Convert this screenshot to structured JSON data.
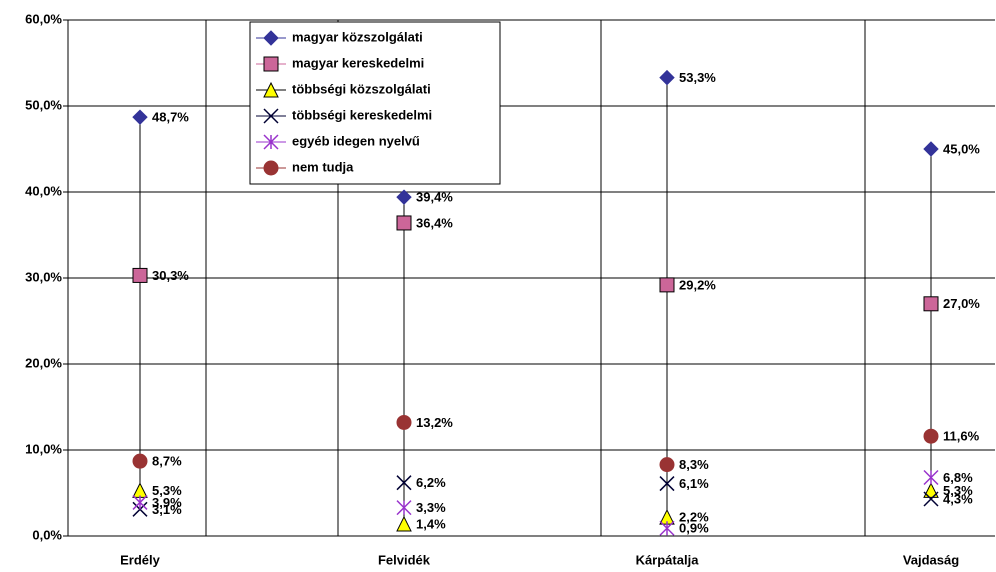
{
  "chart_data": {
    "type": "marker-line",
    "categories": [
      "Erdély",
      "Felvidék",
      "Kárpátalja",
      "Vajdaság"
    ],
    "series": [
      {
        "name": "magyar közszolgálati",
        "color": "#333399",
        "marker": "diamond",
        "values": [
          48.7,
          39.4,
          53.3,
          45.0
        ],
        "value_labels": [
          "48,7%",
          "39,4%",
          "53,3%",
          "45,0%"
        ]
      },
      {
        "name": "magyar kereskedelmi",
        "color": "#cc6699",
        "marker": "square",
        "values": [
          30.3,
          36.4,
          29.2,
          27.0
        ],
        "value_labels": [
          "30,3%",
          "36,4%",
          "29,2%",
          "27,0%"
        ]
      },
      {
        "name": "többségi közszolgálati",
        "color": "#ffff00",
        "marker": "triangle",
        "values": [
          5.3,
          1.4,
          2.2,
          5.3
        ],
        "value_labels": [
          "5,3%",
          "1,4%",
          "2,2%",
          "5,3%"
        ]
      },
      {
        "name": "többségi kereskedelmi",
        "color": "#000033",
        "marker": "x",
        "values": [
          3.1,
          6.2,
          6.1,
          4.3
        ],
        "value_labels": [
          "3,1%",
          "6,2%",
          "6,1%",
          "4,3%"
        ]
      },
      {
        "name": "egyéb idegen nyelvű",
        "color": "#9933cc",
        "marker": "star",
        "values": [
          3.9,
          3.3,
          0.9,
          6.8
        ],
        "value_labels": [
          "3,9%",
          "3,3%",
          "0,9%",
          "6,8%"
        ]
      },
      {
        "name": "nem tudja",
        "color": "#993333",
        "marker": "circle",
        "values": [
          8.7,
          13.2,
          8.3,
          11.6
        ],
        "value_labels": [
          "8,7%",
          "13,2%",
          "8,3%",
          "11,6%"
        ]
      }
    ],
    "ylim": [
      0,
      60
    ],
    "yticks": [
      {
        "value": 0,
        "label": "0,0%"
      },
      {
        "value": 10,
        "label": "10,0%"
      },
      {
        "value": 20,
        "label": "20,0%"
      },
      {
        "value": 30,
        "label": "30,0%"
      },
      {
        "value": 40,
        "label": "40,0%"
      },
      {
        "value": 50,
        "label": "50,0%"
      },
      {
        "value": 60,
        "label": "60,0%"
      }
    ],
    "grid": true,
    "legend": "top-left"
  }
}
